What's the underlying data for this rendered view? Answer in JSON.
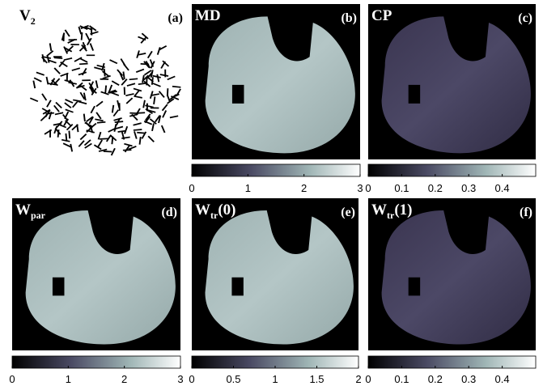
{
  "panels": [
    {
      "title": "V",
      "subscript": "2",
      "label": "(a)"
    },
    {
      "title": "MD",
      "label": "(b)",
      "colorbar": {
        "lim": [
          0,
          3
        ],
        "ticks": [
          0,
          1,
          2,
          3
        ]
      }
    },
    {
      "title": "CP",
      "label": "(c)",
      "colorbar": {
        "lim": [
          0,
          0.5
        ],
        "ticks": [
          0,
          0.1,
          0.2,
          0.3,
          0.4
        ]
      }
    },
    {
      "title": "W",
      "subscript": "par",
      "label": "(d)",
      "colorbar": {
        "lim": [
          0,
          3
        ],
        "ticks": [
          0,
          1,
          2,
          3
        ]
      }
    },
    {
      "title": "W",
      "subscript": "tr",
      "suffix": "(0)",
      "label": "(e)",
      "colorbar": {
        "lim": [
          0,
          2
        ],
        "ticks": [
          0,
          0.5,
          1,
          1.5,
          2
        ]
      }
    },
    {
      "title": "W",
      "subscript": "tr",
      "suffix": "(1)",
      "label": "(f)",
      "colorbar": {
        "lim": [
          0,
          0.5
        ],
        "ticks": [
          0,
          0.1,
          0.2,
          0.3,
          0.4
        ]
      }
    }
  ]
}
